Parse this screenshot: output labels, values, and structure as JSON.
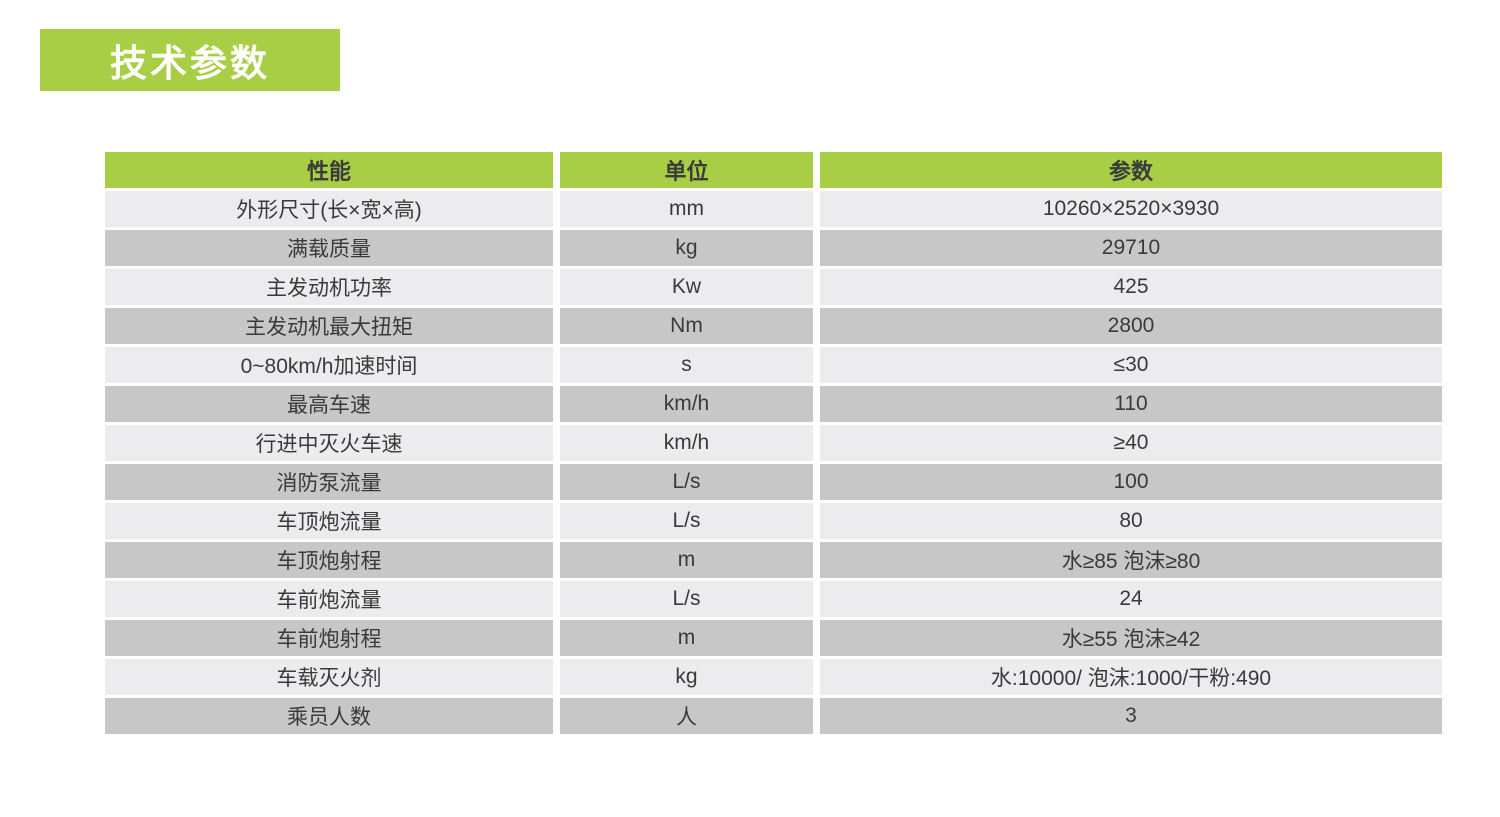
{
  "colors": {
    "page_bg": "#ffffff",
    "green": "#a8ce46",
    "badge_text": "#ffffff",
    "header_text": "#3b3b3b",
    "cell_text": "#3a3a3a",
    "row_light": "#ececee",
    "row_dark": "#c7c7c8"
  },
  "title_badge": {
    "label": "技术参数"
  },
  "table": {
    "headers": [
      "性能",
      "单位",
      "参数"
    ],
    "rows": [
      {
        "name": "外形尺寸(长×宽×高)",
        "unit": "mm",
        "value": "10260×2520×3930"
      },
      {
        "name": "满载质量",
        "unit": "kg",
        "value": "29710"
      },
      {
        "name": "主发动机功率",
        "unit": "Kw",
        "value": "425"
      },
      {
        "name": "主发动机最大扭矩",
        "unit": "Nm",
        "value": "2800"
      },
      {
        "name": "0~80km/h加速时间",
        "unit": "s",
        "value": "≤30"
      },
      {
        "name": "最高车速",
        "unit": "km/h",
        "value": "110"
      },
      {
        "name": "行进中灭火车速",
        "unit": "km/h",
        "value": "≥40"
      },
      {
        "name": "消防泵流量",
        "unit": "L/s",
        "value": "100"
      },
      {
        "name": "车顶炮流量",
        "unit": "L/s",
        "value": "80"
      },
      {
        "name": "车顶炮射程",
        "unit": "m",
        "value": "水≥85 泡沫≥80"
      },
      {
        "name": "车前炮流量",
        "unit": "L/s",
        "value": "24"
      },
      {
        "name": "车前炮射程",
        "unit": "m",
        "value": "水≥55 泡沫≥42"
      },
      {
        "name": "车载灭火剂",
        "unit": "kg",
        "value": "水:10000/ 泡沫:1000/干粉:490"
      },
      {
        "name": "乘员人数",
        "unit": "人",
        "value": "3"
      }
    ]
  }
}
